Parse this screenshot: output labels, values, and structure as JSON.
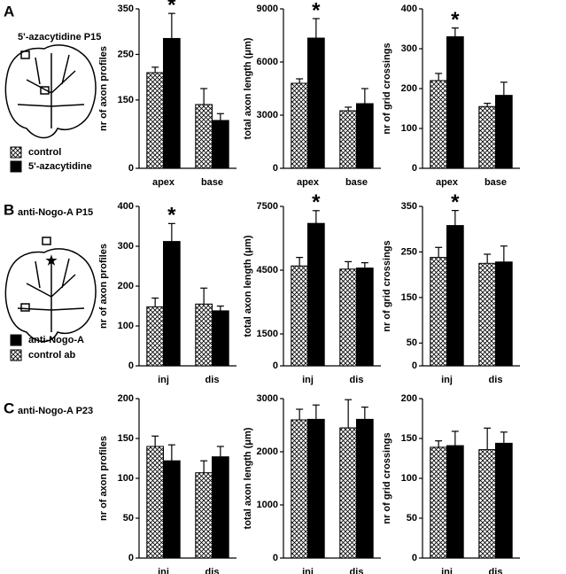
{
  "panels": [
    {
      "letter": "A",
      "title": "5'-azacytidine P15"
    },
    {
      "letter": "B",
      "title": "anti-Nogo-A P15"
    },
    {
      "letter": "C",
      "title": "anti-Nogo-A P23"
    }
  ],
  "chart_data": [
    {
      "type": "bar",
      "ylabel": "nr of axon profiles",
      "categories": [
        "apex",
        "base"
      ],
      "ylim": [
        0,
        350
      ],
      "yticks": [
        0,
        150,
        250,
        350
      ],
      "annotation": "*",
      "series": [
        {
          "name": "control",
          "color": "#ffffff",
          "hatch": true,
          "values": [
            210,
            140
          ],
          "errors": [
            12,
            35
          ]
        },
        {
          "name": "5'-azacytidine",
          "color": "#000000",
          "hatch": false,
          "values": [
            285,
            105
          ],
          "errors": [
            55,
            15
          ]
        }
      ]
    },
    {
      "type": "bar",
      "ylabel": "total axon length (μm)",
      "categories": [
        "apex",
        "base"
      ],
      "ylim": [
        0,
        9000
      ],
      "yticks": [
        0,
        3000,
        6000,
        9000
      ],
      "annotation": "*",
      "series": [
        {
          "color": "#ffffff",
          "hatch": true,
          "values": [
            4800,
            3250
          ],
          "errors": [
            250,
            200
          ]
        },
        {
          "color": "#000000",
          "hatch": false,
          "values": [
            7350,
            3650
          ],
          "errors": [
            1100,
            850
          ]
        }
      ]
    },
    {
      "type": "bar",
      "ylabel": "nr of grid crossings",
      "categories": [
        "apex",
        "base"
      ],
      "ylim": [
        0,
        400
      ],
      "yticks": [
        0,
        100,
        200,
        300,
        400
      ],
      "annotation": "*",
      "series": [
        {
          "color": "#ffffff",
          "hatch": true,
          "values": [
            220,
            155
          ],
          "errors": [
            18,
            8
          ]
        },
        {
          "color": "#000000",
          "hatch": false,
          "values": [
            330,
            183
          ],
          "errors": [
            22,
            33
          ]
        }
      ]
    },
    {
      "type": "bar",
      "ylabel": "nr of axon profiles",
      "categories": [
        "inj",
        "dis"
      ],
      "ylim": [
        0,
        400
      ],
      "yticks": [
        0,
        100,
        200,
        300,
        400
      ],
      "annotation": "*",
      "series": [
        {
          "name": "control ab",
          "color": "#ffffff",
          "hatch": true,
          "values": [
            148,
            155
          ],
          "errors": [
            22,
            40
          ]
        },
        {
          "name": "anti-Nogo-A",
          "color": "#000000",
          "hatch": false,
          "values": [
            312,
            138
          ],
          "errors": [
            45,
            12
          ]
        }
      ]
    },
    {
      "type": "bar",
      "ylabel": "total axon length (μm)",
      "categories": [
        "inj",
        "dis"
      ],
      "ylim": [
        0,
        7500
      ],
      "yticks": [
        0,
        1500,
        4500,
        7500
      ],
      "annotation": "*",
      "series": [
        {
          "color": "#ffffff",
          "hatch": true,
          "values": [
            4700,
            4550
          ],
          "errors": [
            400,
            350
          ]
        },
        {
          "color": "#000000",
          "hatch": false,
          "values": [
            6700,
            4600
          ],
          "errors": [
            600,
            250
          ]
        }
      ]
    },
    {
      "type": "bar",
      "ylabel": "nr of grid crossings",
      "categories": [
        "inj",
        "dis"
      ],
      "ylim": [
        0,
        350
      ],
      "yticks": [
        0,
        50,
        150,
        250,
        350
      ],
      "annotation": "*",
      "series": [
        {
          "color": "#ffffff",
          "hatch": true,
          "values": [
            238,
            225
          ],
          "errors": [
            22,
            20
          ]
        },
        {
          "color": "#000000",
          "hatch": false,
          "values": [
            308,
            228
          ],
          "errors": [
            33,
            35
          ]
        }
      ]
    },
    {
      "type": "bar",
      "ylabel": "nr of axon profiles",
      "categories": [
        "inj",
        "dis"
      ],
      "ylim": [
        0,
        200
      ],
      "yticks": [
        0,
        50,
        100,
        150,
        200
      ],
      "series": [
        {
          "color": "#ffffff",
          "hatch": true,
          "values": [
            140,
            107
          ],
          "errors": [
            13,
            15
          ]
        },
        {
          "color": "#000000",
          "hatch": false,
          "values": [
            122,
            127
          ],
          "errors": [
            20,
            13
          ]
        }
      ]
    },
    {
      "type": "bar",
      "ylabel": "total axon length (μm)",
      "categories": [
        "inj",
        "dis"
      ],
      "ylim": [
        0,
        3000
      ],
      "yticks": [
        0,
        1000,
        2000,
        3000
      ],
      "series": [
        {
          "color": "#ffffff",
          "hatch": true,
          "values": [
            2600,
            2450
          ],
          "errors": [
            200,
            530
          ]
        },
        {
          "color": "#000000",
          "hatch": false,
          "values": [
            2610,
            2610
          ],
          "errors": [
            270,
            230
          ]
        }
      ]
    },
    {
      "type": "bar",
      "ylabel": "nr of grid crossings",
      "categories": [
        "inj",
        "dis"
      ],
      "ylim": [
        0,
        200
      ],
      "yticks": [
        0,
        50,
        100,
        150,
        200
      ],
      "series": [
        {
          "color": "#ffffff",
          "hatch": true,
          "values": [
            139,
            136
          ],
          "errors": [
            8,
            27
          ]
        },
        {
          "color": "#000000",
          "hatch": false,
          "values": [
            141,
            144
          ],
          "errors": [
            18,
            14
          ]
        }
      ]
    }
  ]
}
